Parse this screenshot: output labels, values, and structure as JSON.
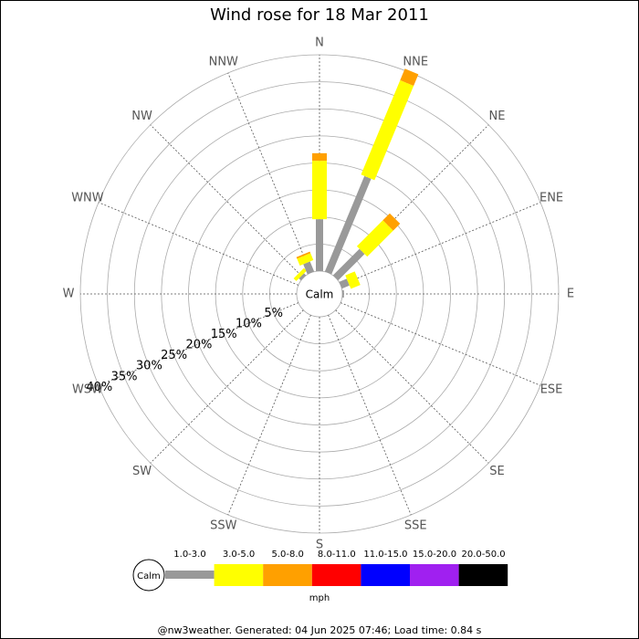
{
  "chart_data": {
    "type": "windrose",
    "title": "Wind rose for 18 Mar 2011",
    "directions": [
      "N",
      "NNE",
      "NE",
      "ENE",
      "E",
      "ESE",
      "SE",
      "SSE",
      "S",
      "SSW",
      "SW",
      "WSW",
      "W",
      "WNW",
      "NW",
      "NNW"
    ],
    "calm_label": "Calm",
    "rlim": [
      0,
      40
    ],
    "rticks": [
      {
        "value": 5,
        "label": "5%"
      },
      {
        "value": 10,
        "label": "10%"
      },
      {
        "value": 15,
        "label": "15%"
      },
      {
        "value": 20,
        "label": "20%"
      },
      {
        "value": 25,
        "label": "25%"
      },
      {
        "value": 30,
        "label": "30%"
      },
      {
        "value": 35,
        "label": "35%"
      },
      {
        "value": 40,
        "label": "40%"
      }
    ],
    "series": [
      {
        "name": "1.0-3.0",
        "color": "#999999",
        "values": [
          9.6,
          19.1,
          6.9,
          1.5,
          0.3,
          0,
          0,
          0,
          0,
          0,
          0,
          0,
          0,
          0,
          0.5,
          2.0
        ]
      },
      {
        "name": "3.0-5.0",
        "color": "#ffff00",
        "values": [
          10.8,
          18.9,
          6.8,
          1.9,
          0,
          0,
          0,
          0,
          0,
          0,
          0,
          0,
          0,
          0,
          0.7,
          1.4
        ]
      },
      {
        "name": "5.0-8.0",
        "color": "#ffa000",
        "values": [
          1.4,
          2.3,
          1.8,
          0,
          0,
          0,
          0,
          0,
          0,
          0,
          0,
          0,
          0,
          0,
          0,
          0.3
        ]
      },
      {
        "name": "8.0-11.0",
        "color": "#ff0000",
        "values": [
          0,
          0,
          0,
          0,
          0,
          0,
          0,
          0,
          0,
          0,
          0,
          0,
          0,
          0,
          0,
          0
        ]
      },
      {
        "name": "11.0-15.0",
        "color": "#0000ff",
        "values": [
          0,
          0,
          0,
          0,
          0,
          0,
          0,
          0,
          0,
          0,
          0,
          0,
          0,
          0,
          0,
          0
        ]
      },
      {
        "name": "15.0-20.0",
        "color": "#a020f0",
        "values": [
          0,
          0,
          0,
          0,
          0,
          0,
          0,
          0,
          0,
          0,
          0,
          0,
          0,
          0,
          0,
          0
        ]
      },
      {
        "name": "20.0-50.0",
        "color": "#000000",
        "values": [
          0,
          0,
          0,
          0,
          0,
          0,
          0,
          0,
          0,
          0,
          0,
          0,
          0,
          0,
          0,
          0
        ]
      }
    ],
    "unit": "mph",
    "footer": "@nw3weather. Generated: 04 Jun 2025 07:46; Load time: 0.84 s"
  }
}
